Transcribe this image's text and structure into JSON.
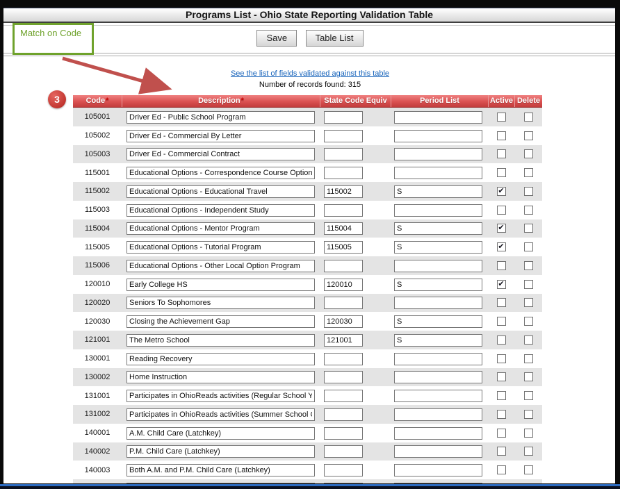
{
  "window": {
    "title": "Programs List - Ohio State Reporting Validation Table"
  },
  "annotations": {
    "callout_text": "Match on Code",
    "callout_color": "#6fa22c",
    "step_badge": "3",
    "badge_color": "#c23630",
    "arrow_color": "#c0504d"
  },
  "toolbar": {
    "save_label": "Save",
    "table_list_label": "Table List"
  },
  "link_text": "See the list of fields validated against this table",
  "records_count_text": "Number of records found: 315",
  "icons": {
    "checkmark": "✔"
  },
  "table": {
    "required_marker": "*",
    "header_color": "#da5151",
    "columns": [
      {
        "label": "Code",
        "required": true
      },
      {
        "label": "Description",
        "required": true
      },
      {
        "label": "State Code Equiv",
        "required": false
      },
      {
        "label": "Period List",
        "required": false
      },
      {
        "label": "Active",
        "required": false
      },
      {
        "label": "Delete",
        "required": false
      }
    ],
    "rows": [
      {
        "code": "105001",
        "description": "Driver Ed - Public School Program",
        "state_code": "",
        "period_list": "",
        "active": false,
        "delete": false
      },
      {
        "code": "105002",
        "description": "Driver Ed - Commercial By Letter",
        "state_code": "",
        "period_list": "",
        "active": false,
        "delete": false
      },
      {
        "code": "105003",
        "description": "Driver Ed - Commercial Contract",
        "state_code": "",
        "period_list": "",
        "active": false,
        "delete": false
      },
      {
        "code": "115001",
        "description": "Educational Options - Correspondence Course Option",
        "state_code": "",
        "period_list": "",
        "active": false,
        "delete": false
      },
      {
        "code": "115002",
        "description": "Educational Options - Educational Travel",
        "state_code": "115002",
        "period_list": "S",
        "active": true,
        "delete": false
      },
      {
        "code": "115003",
        "description": "Educational Options - Independent Study",
        "state_code": "",
        "period_list": "",
        "active": false,
        "delete": false
      },
      {
        "code": "115004",
        "description": "Educational Options - Mentor Program",
        "state_code": "115004",
        "period_list": "S",
        "active": true,
        "delete": false
      },
      {
        "code": "115005",
        "description": "Educational Options - Tutorial Program",
        "state_code": "115005",
        "period_list": "S",
        "active": true,
        "delete": false
      },
      {
        "code": "115006",
        "description": "Educational Options - Other Local Option Program",
        "state_code": "",
        "period_list": "",
        "active": false,
        "delete": false
      },
      {
        "code": "120010",
        "description": "Early College HS",
        "state_code": "120010",
        "period_list": "S",
        "active": true,
        "delete": false
      },
      {
        "code": "120020",
        "description": "Seniors To Sophomores",
        "state_code": "",
        "period_list": "",
        "active": false,
        "delete": false
      },
      {
        "code": "120030",
        "description": "Closing the Achievement Gap",
        "state_code": "120030",
        "period_list": "S",
        "active": false,
        "delete": false
      },
      {
        "code": "121001",
        "description": "The Metro School",
        "state_code": "121001",
        "period_list": "S",
        "active": false,
        "delete": false
      },
      {
        "code": "130001",
        "description": "Reading Recovery",
        "state_code": "",
        "period_list": "",
        "active": false,
        "delete": false
      },
      {
        "code": "130002",
        "description": "Home Instruction",
        "state_code": "",
        "period_list": "",
        "active": false,
        "delete": false
      },
      {
        "code": "131001",
        "description": "Participates in OhioReads activities (Regular School Year",
        "state_code": "",
        "period_list": "",
        "active": false,
        "delete": false
      },
      {
        "code": "131002",
        "description": "Participates in OhioReads activities (Summer School ONL",
        "state_code": "",
        "period_list": "",
        "active": false,
        "delete": false
      },
      {
        "code": "140001",
        "description": "A.M. Child Care (Latchkey)",
        "state_code": "",
        "period_list": "",
        "active": false,
        "delete": false
      },
      {
        "code": "140002",
        "description": "P.M. Child Care (Latchkey)",
        "state_code": "",
        "period_list": "",
        "active": false,
        "delete": false
      },
      {
        "code": "140003",
        "description": "Both A.M. and P.M. Child Care (Latchkey)",
        "state_code": "",
        "period_list": "",
        "active": false,
        "delete": false
      },
      {
        "code": "",
        "description": "",
        "state_code": "",
        "period_list": "",
        "active": false,
        "delete": false
      }
    ]
  }
}
